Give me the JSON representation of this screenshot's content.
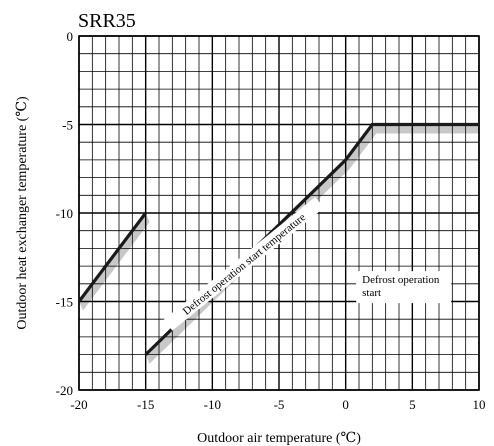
{
  "chart_data": {
    "type": "line",
    "title": "SRR35",
    "xlabel": "Outdoor air temperature (℃)",
    "ylabel": "Outdoor heat exchanger temperature (℃)",
    "xlim": [
      -20,
      10
    ],
    "ylim": [
      -20,
      0
    ],
    "x_ticks": [
      "-20",
      "-15",
      "-10",
      "-5",
      "0",
      "5",
      "10"
    ],
    "y_ticks": [
      "0",
      "-5",
      "-10",
      "-15",
      "-20"
    ],
    "grid": true,
    "grid_minor_step": 1,
    "grid_major_step_x": 5,
    "grid_major_step_y": 5,
    "series": [
      {
        "name": "",
        "segments": [
          [
            [
              -20,
              -15
            ],
            [
              -15,
              -10
            ]
          ],
          [
            [
              -15,
              -18
            ],
            [
              0,
              -7
            ],
            [
              2,
              -5
            ],
            [
              10,
              -5
            ]
          ]
        ],
        "color": "#1a1a1a",
        "shade_color": "#c8c8c8"
      }
    ],
    "annotations": [
      {
        "label": "Defrost operation start temperature",
        "x": -7.5,
        "y": -13.0,
        "angle_deg": -39
      },
      {
        "label_lines": [
          "Defrost operation",
          "start"
        ],
        "x": 3.3,
        "y": -14.3,
        "boxed": true
      }
    ]
  }
}
